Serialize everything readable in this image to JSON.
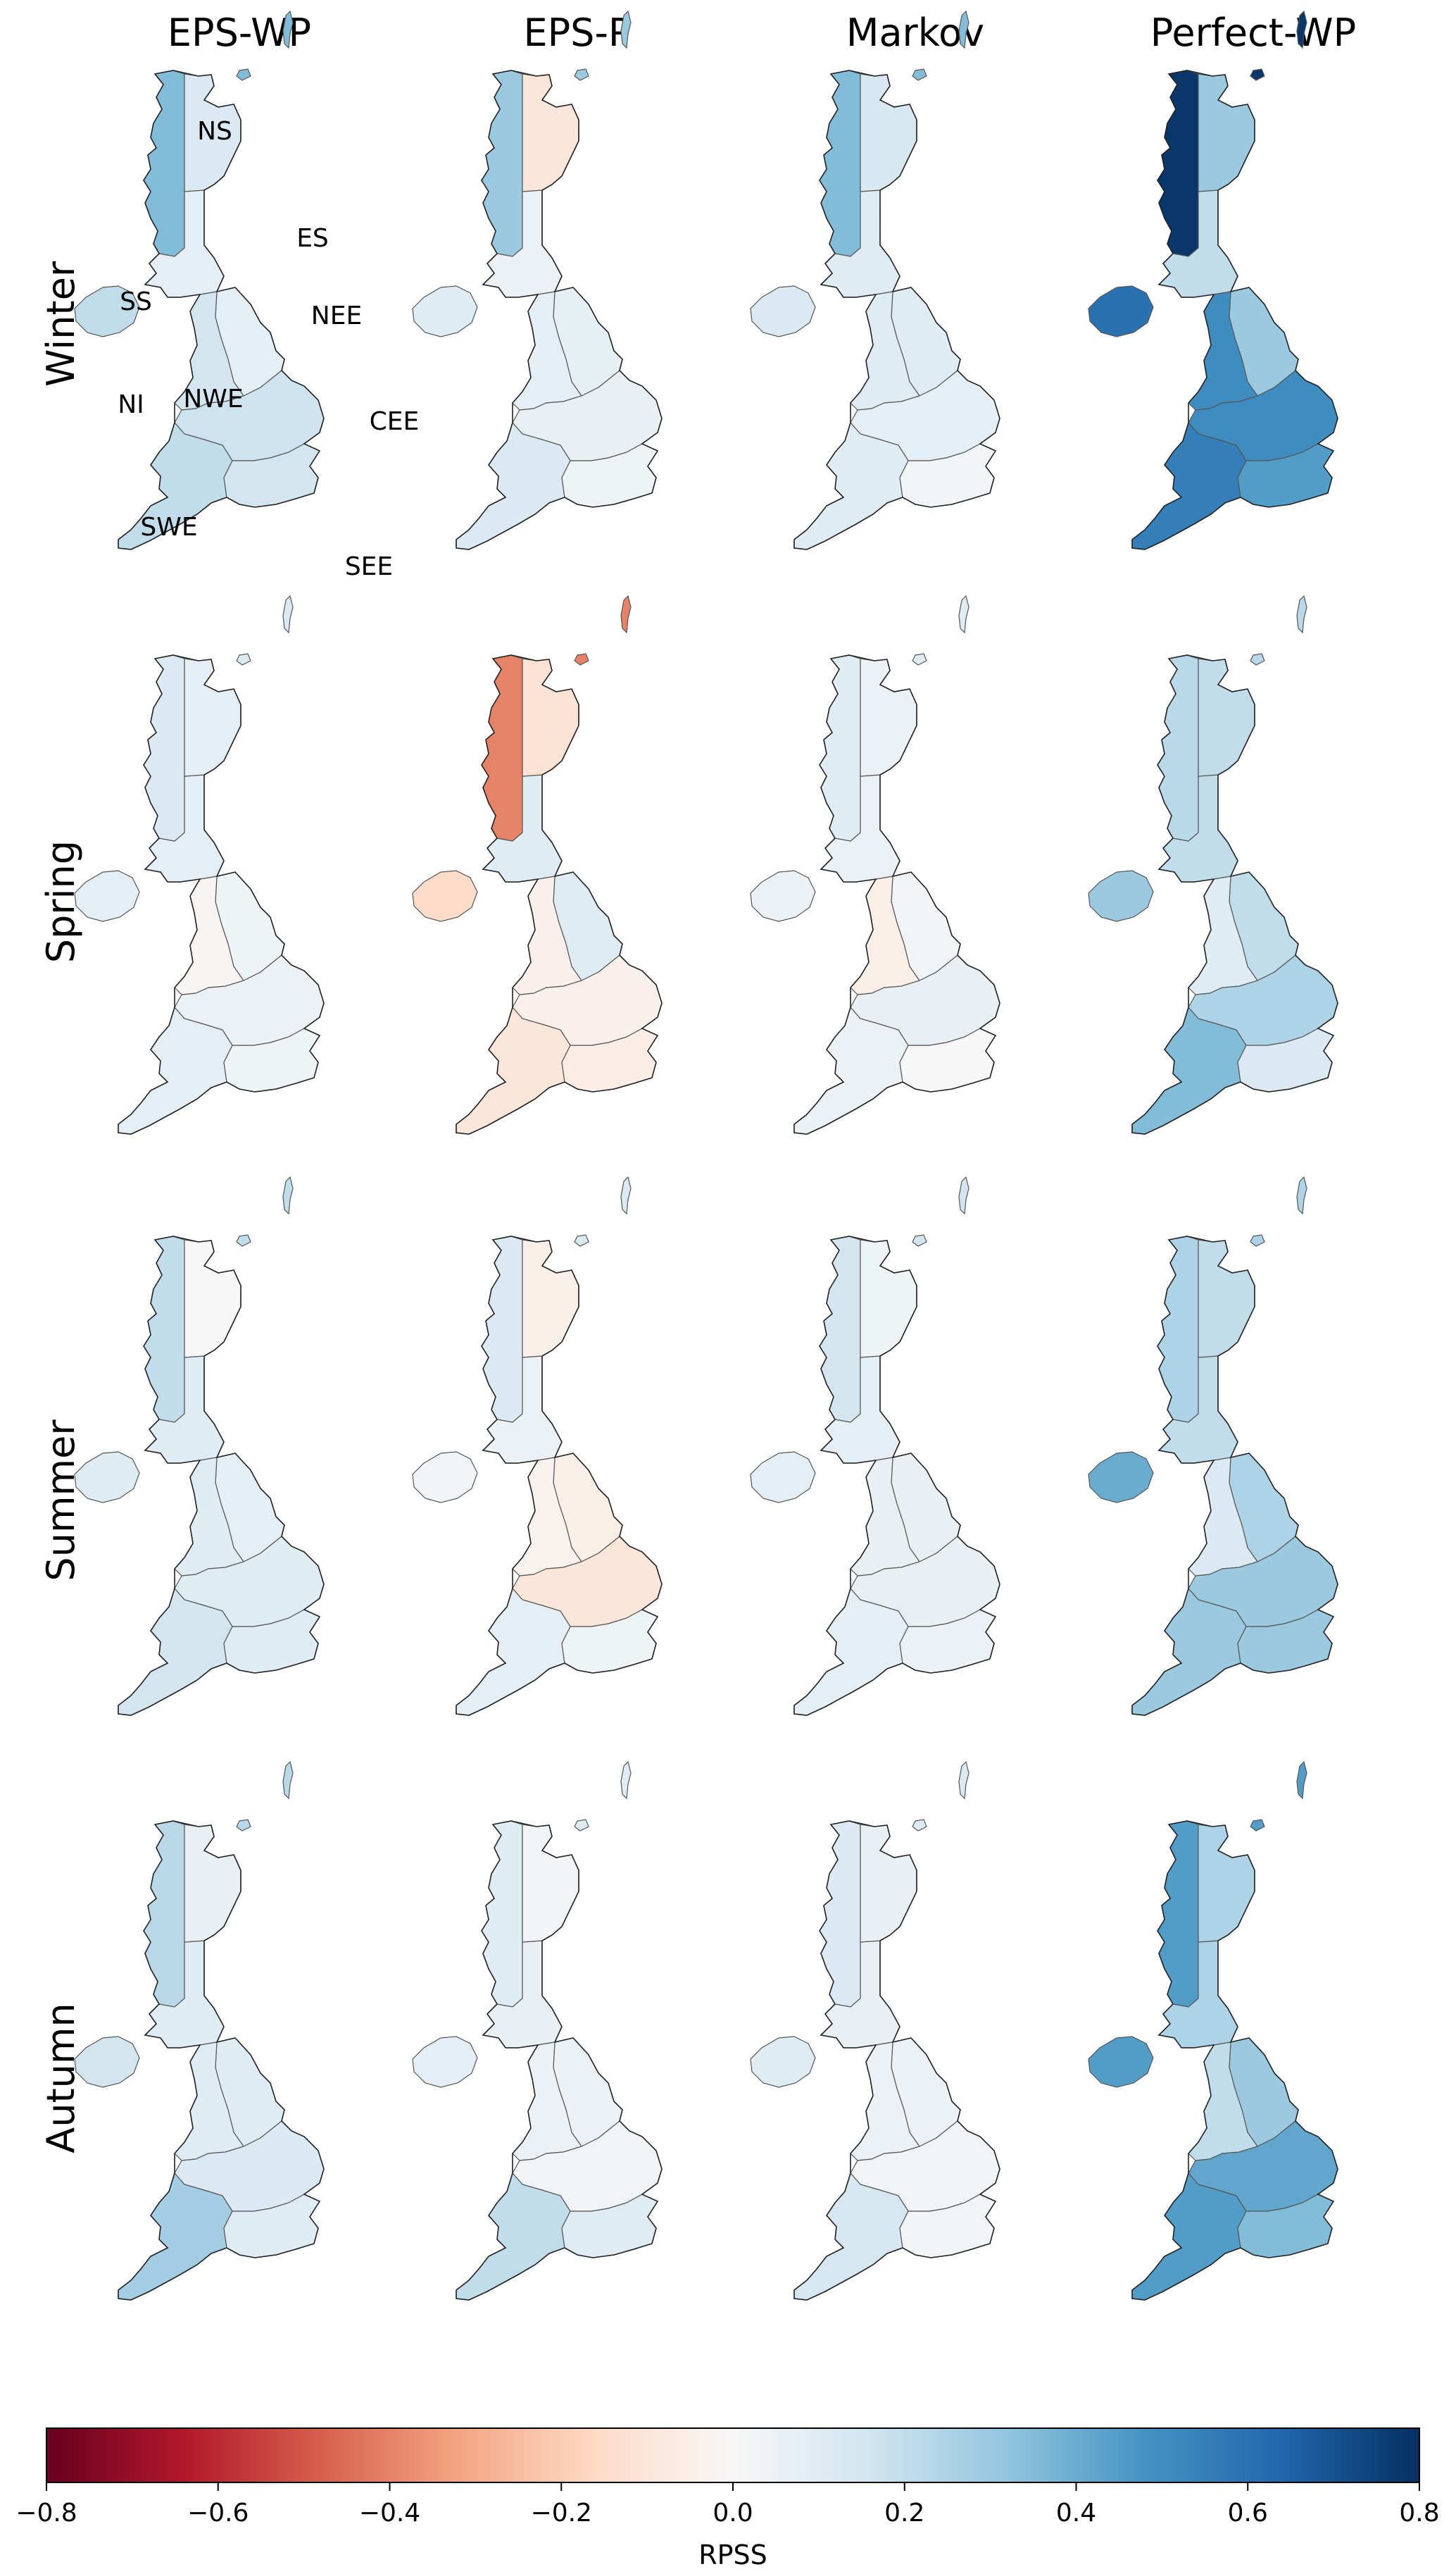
{
  "columns": [
    "EPS-WP",
    "EPS-P",
    "Markov",
    "Perfect-WP"
  ],
  "rows": [
    "Winter",
    "Spring",
    "Summer",
    "Autumn"
  ],
  "region_labels": [
    "NS",
    "ES",
    "SS",
    "NEE",
    "NI",
    "NWE",
    "CEE",
    "SWE",
    "SEE"
  ],
  "colorbar": {
    "label": "RPSS",
    "min": -0.8,
    "max": 0.8,
    "colormap": "RdBu",
    "ticks": [
      "−0.8",
      "−0.6",
      "−0.4",
      "−0.2",
      "0.0",
      "0.2",
      "0.4",
      "0.6",
      "0.8"
    ],
    "stops": [
      "#67001f",
      "#b2182b",
      "#d6604d",
      "#f4a582",
      "#fddbc7",
      "#f7f7f7",
      "#d1e5f0",
      "#92c5de",
      "#4393c3",
      "#2166ac",
      "#053061"
    ]
  },
  "chart_data": {
    "type": "heatmap",
    "regions": [
      "NS",
      "ES",
      "SS",
      "NI",
      "NEE",
      "NWE",
      "CEE",
      "SWE",
      "SEE"
    ],
    "values": {
      "Winter": {
        "EPS-WP": {
          "NS": 0.35,
          "ES": 0.12,
          "SS": 0.08,
          "NI": 0.2,
          "NEE": 0.08,
          "NWE": 0.15,
          "CEE": 0.17,
          "SWE": 0.2,
          "SEE": 0.15
        },
        "EPS-P": {
          "NS": 0.3,
          "ES": -0.1,
          "SS": 0.05,
          "NI": 0.1,
          "NEE": 0.07,
          "NWE": 0.08,
          "CEE": 0.06,
          "SWE": 0.12,
          "SEE": 0.04
        },
        "Markov": {
          "NS": 0.35,
          "ES": 0.13,
          "SS": 0.1,
          "NI": 0.12,
          "NEE": 0.1,
          "NWE": 0.1,
          "CEE": 0.08,
          "SWE": 0.1,
          "SEE": 0.03
        },
        "Perfect-WP": {
          "NS": 0.78,
          "ES": 0.3,
          "SS": 0.2,
          "NI": 0.6,
          "NEE": 0.3,
          "NWE": 0.5,
          "CEE": 0.5,
          "SWE": 0.55,
          "SEE": 0.45
        }
      },
      "Spring": {
        "EPS-WP": {
          "NS": 0.12,
          "ES": 0.08,
          "SS": 0.08,
          "NI": 0.08,
          "NEE": 0.04,
          "NWE": -0.02,
          "CEE": 0.05,
          "SWE": 0.08,
          "SEE": 0.04
        },
        "EPS-P": {
          "NS": -0.4,
          "ES": -0.12,
          "SS": 0.1,
          "NI": -0.15,
          "NEE": 0.1,
          "NWE": -0.04,
          "CEE": -0.04,
          "SWE": -0.1,
          "SEE": -0.06
        },
        "Markov": {
          "NS": 0.1,
          "ES": 0.05,
          "SS": 0.05,
          "NI": 0.05,
          "NEE": 0.03,
          "NWE": -0.05,
          "CEE": 0.06,
          "SWE": 0.05,
          "SEE": 0.0
        },
        "Perfect-WP": {
          "NS": 0.22,
          "ES": 0.2,
          "SS": 0.2,
          "NI": 0.3,
          "NEE": 0.2,
          "NWE": 0.1,
          "CEE": 0.25,
          "SWE": 0.35,
          "SEE": 0.12
        }
      },
      "Summer": {
        "EPS-WP": {
          "NS": 0.2,
          "ES": 0.0,
          "SS": 0.1,
          "NI": 0.1,
          "NEE": 0.08,
          "NWE": 0.1,
          "CEE": 0.1,
          "SWE": 0.15,
          "SEE": 0.1
        },
        "EPS-P": {
          "NS": 0.12,
          "ES": -0.05,
          "SS": 0.05,
          "NI": 0.03,
          "NEE": -0.05,
          "NWE": -0.03,
          "CEE": -0.1,
          "SWE": 0.08,
          "SEE": 0.04
        },
        "Markov": {
          "NS": 0.15,
          "ES": 0.04,
          "SS": 0.08,
          "NI": 0.08,
          "NEE": 0.06,
          "NWE": 0.06,
          "CEE": 0.06,
          "SWE": 0.08,
          "SEE": 0.05
        },
        "Perfect-WP": {
          "NS": 0.25,
          "ES": 0.2,
          "SS": 0.2,
          "NI": 0.4,
          "NEE": 0.25,
          "NWE": 0.12,
          "CEE": 0.3,
          "SWE": 0.3,
          "SEE": 0.3
        }
      },
      "Autumn": {
        "EPS-WP": {
          "NS": 0.22,
          "ES": 0.06,
          "SS": 0.1,
          "NI": 0.15,
          "NEE": 0.1,
          "NWE": 0.1,
          "CEE": 0.12,
          "SWE": 0.28,
          "SEE": 0.1
        },
        "EPS-P": {
          "NS": 0.1,
          "ES": 0.03,
          "SS": 0.06,
          "NI": 0.08,
          "NEE": 0.05,
          "NWE": 0.05,
          "CEE": 0.03,
          "SWE": 0.2,
          "SEE": 0.1
        },
        "Markov": {
          "NS": 0.12,
          "ES": 0.06,
          "SS": 0.06,
          "NI": 0.1,
          "NEE": 0.05,
          "NWE": 0.05,
          "CEE": 0.03,
          "SWE": 0.14,
          "SEE": 0.03
        },
        "Perfect-WP": {
          "NS": 0.45,
          "ES": 0.25,
          "SS": 0.25,
          "NI": 0.45,
          "NEE": 0.3,
          "NWE": 0.2,
          "CEE": 0.42,
          "SWE": 0.45,
          "SEE": 0.35
        }
      }
    }
  }
}
